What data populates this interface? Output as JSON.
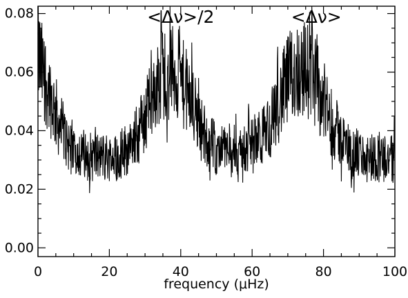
{
  "chart_data": {
    "type": "line",
    "xlabel": "frequency (μHz)",
    "ylabel": "",
    "xlim": [
      0,
      100
    ],
    "ylim": [
      -0.003,
      0.0825
    ],
    "x_ticks": [
      0,
      20,
      40,
      60,
      80,
      100
    ],
    "x_tick_labels": [
      "0",
      "20",
      "40",
      "60",
      "80",
      "100"
    ],
    "y_ticks": [
      0.0,
      0.02,
      0.04,
      0.06,
      0.08
    ],
    "y_tick_labels": [
      "0.00",
      "0.02",
      "0.04",
      "0.06",
      "0.08"
    ],
    "x_minor_step": 5,
    "y_minor_step": 0.005,
    "grid": false,
    "annotations": [
      {
        "text": "<Δν>/2",
        "x": 40,
        "y": 0.079
      },
      {
        "text": "<Δν>",
        "x": 78,
        "y": 0.079
      }
    ],
    "series": [
      {
        "x": [
          0,
          1,
          2,
          3,
          4,
          5,
          6,
          7,
          8,
          9,
          10,
          11,
          12,
          13,
          14,
          15,
          16,
          17,
          18,
          19,
          20,
          21,
          22,
          23,
          24,
          25,
          26,
          27,
          28,
          29,
          30,
          31,
          32,
          33,
          34,
          35,
          36,
          37,
          38,
          39,
          40,
          41,
          42,
          43,
          44,
          45,
          46,
          47,
          48,
          49,
          50,
          51,
          52,
          53,
          54,
          55,
          56,
          57,
          58,
          59,
          60,
          61,
          62,
          63,
          64,
          65,
          66,
          67,
          68,
          69,
          70,
          71,
          72,
          73,
          74,
          75,
          76,
          77,
          78,
          79,
          80,
          81,
          82,
          83,
          84,
          85,
          86,
          87,
          88,
          89,
          90,
          91,
          92,
          93,
          94,
          95,
          96,
          97,
          98,
          99,
          100
        ],
        "y": [
          0.067,
          0.061,
          0.058,
          0.054,
          0.05,
          0.046,
          0.042,
          0.039,
          0.037,
          0.035,
          0.034,
          0.033,
          0.032,
          0.032,
          0.031,
          0.031,
          0.031,
          0.031,
          0.031,
          0.031,
          0.031,
          0.031,
          0.031,
          0.032,
          0.033,
          0.034,
          0.035,
          0.037,
          0.039,
          0.042,
          0.045,
          0.048,
          0.051,
          0.054,
          0.057,
          0.059,
          0.06,
          0.06,
          0.06,
          0.059,
          0.057,
          0.055,
          0.052,
          0.049,
          0.046,
          0.043,
          0.04,
          0.038,
          0.036,
          0.035,
          0.034,
          0.034,
          0.033,
          0.033,
          0.033,
          0.033,
          0.033,
          0.033,
          0.034,
          0.034,
          0.035,
          0.036,
          0.037,
          0.038,
          0.04,
          0.042,
          0.045,
          0.048,
          0.051,
          0.054,
          0.057,
          0.059,
          0.06,
          0.061,
          0.061,
          0.061,
          0.06,
          0.058,
          0.056,
          0.053,
          0.05,
          0.047,
          0.044,
          0.041,
          0.039,
          0.037,
          0.035,
          0.034,
          0.033,
          0.032,
          0.032,
          0.031,
          0.031,
          0.031,
          0.031,
          0.031,
          0.031,
          0.031,
          0.031,
          0.03,
          0.03
        ],
        "peak_spike": {
          "x": 34.5,
          "y": 0.081
        }
      }
    ]
  }
}
